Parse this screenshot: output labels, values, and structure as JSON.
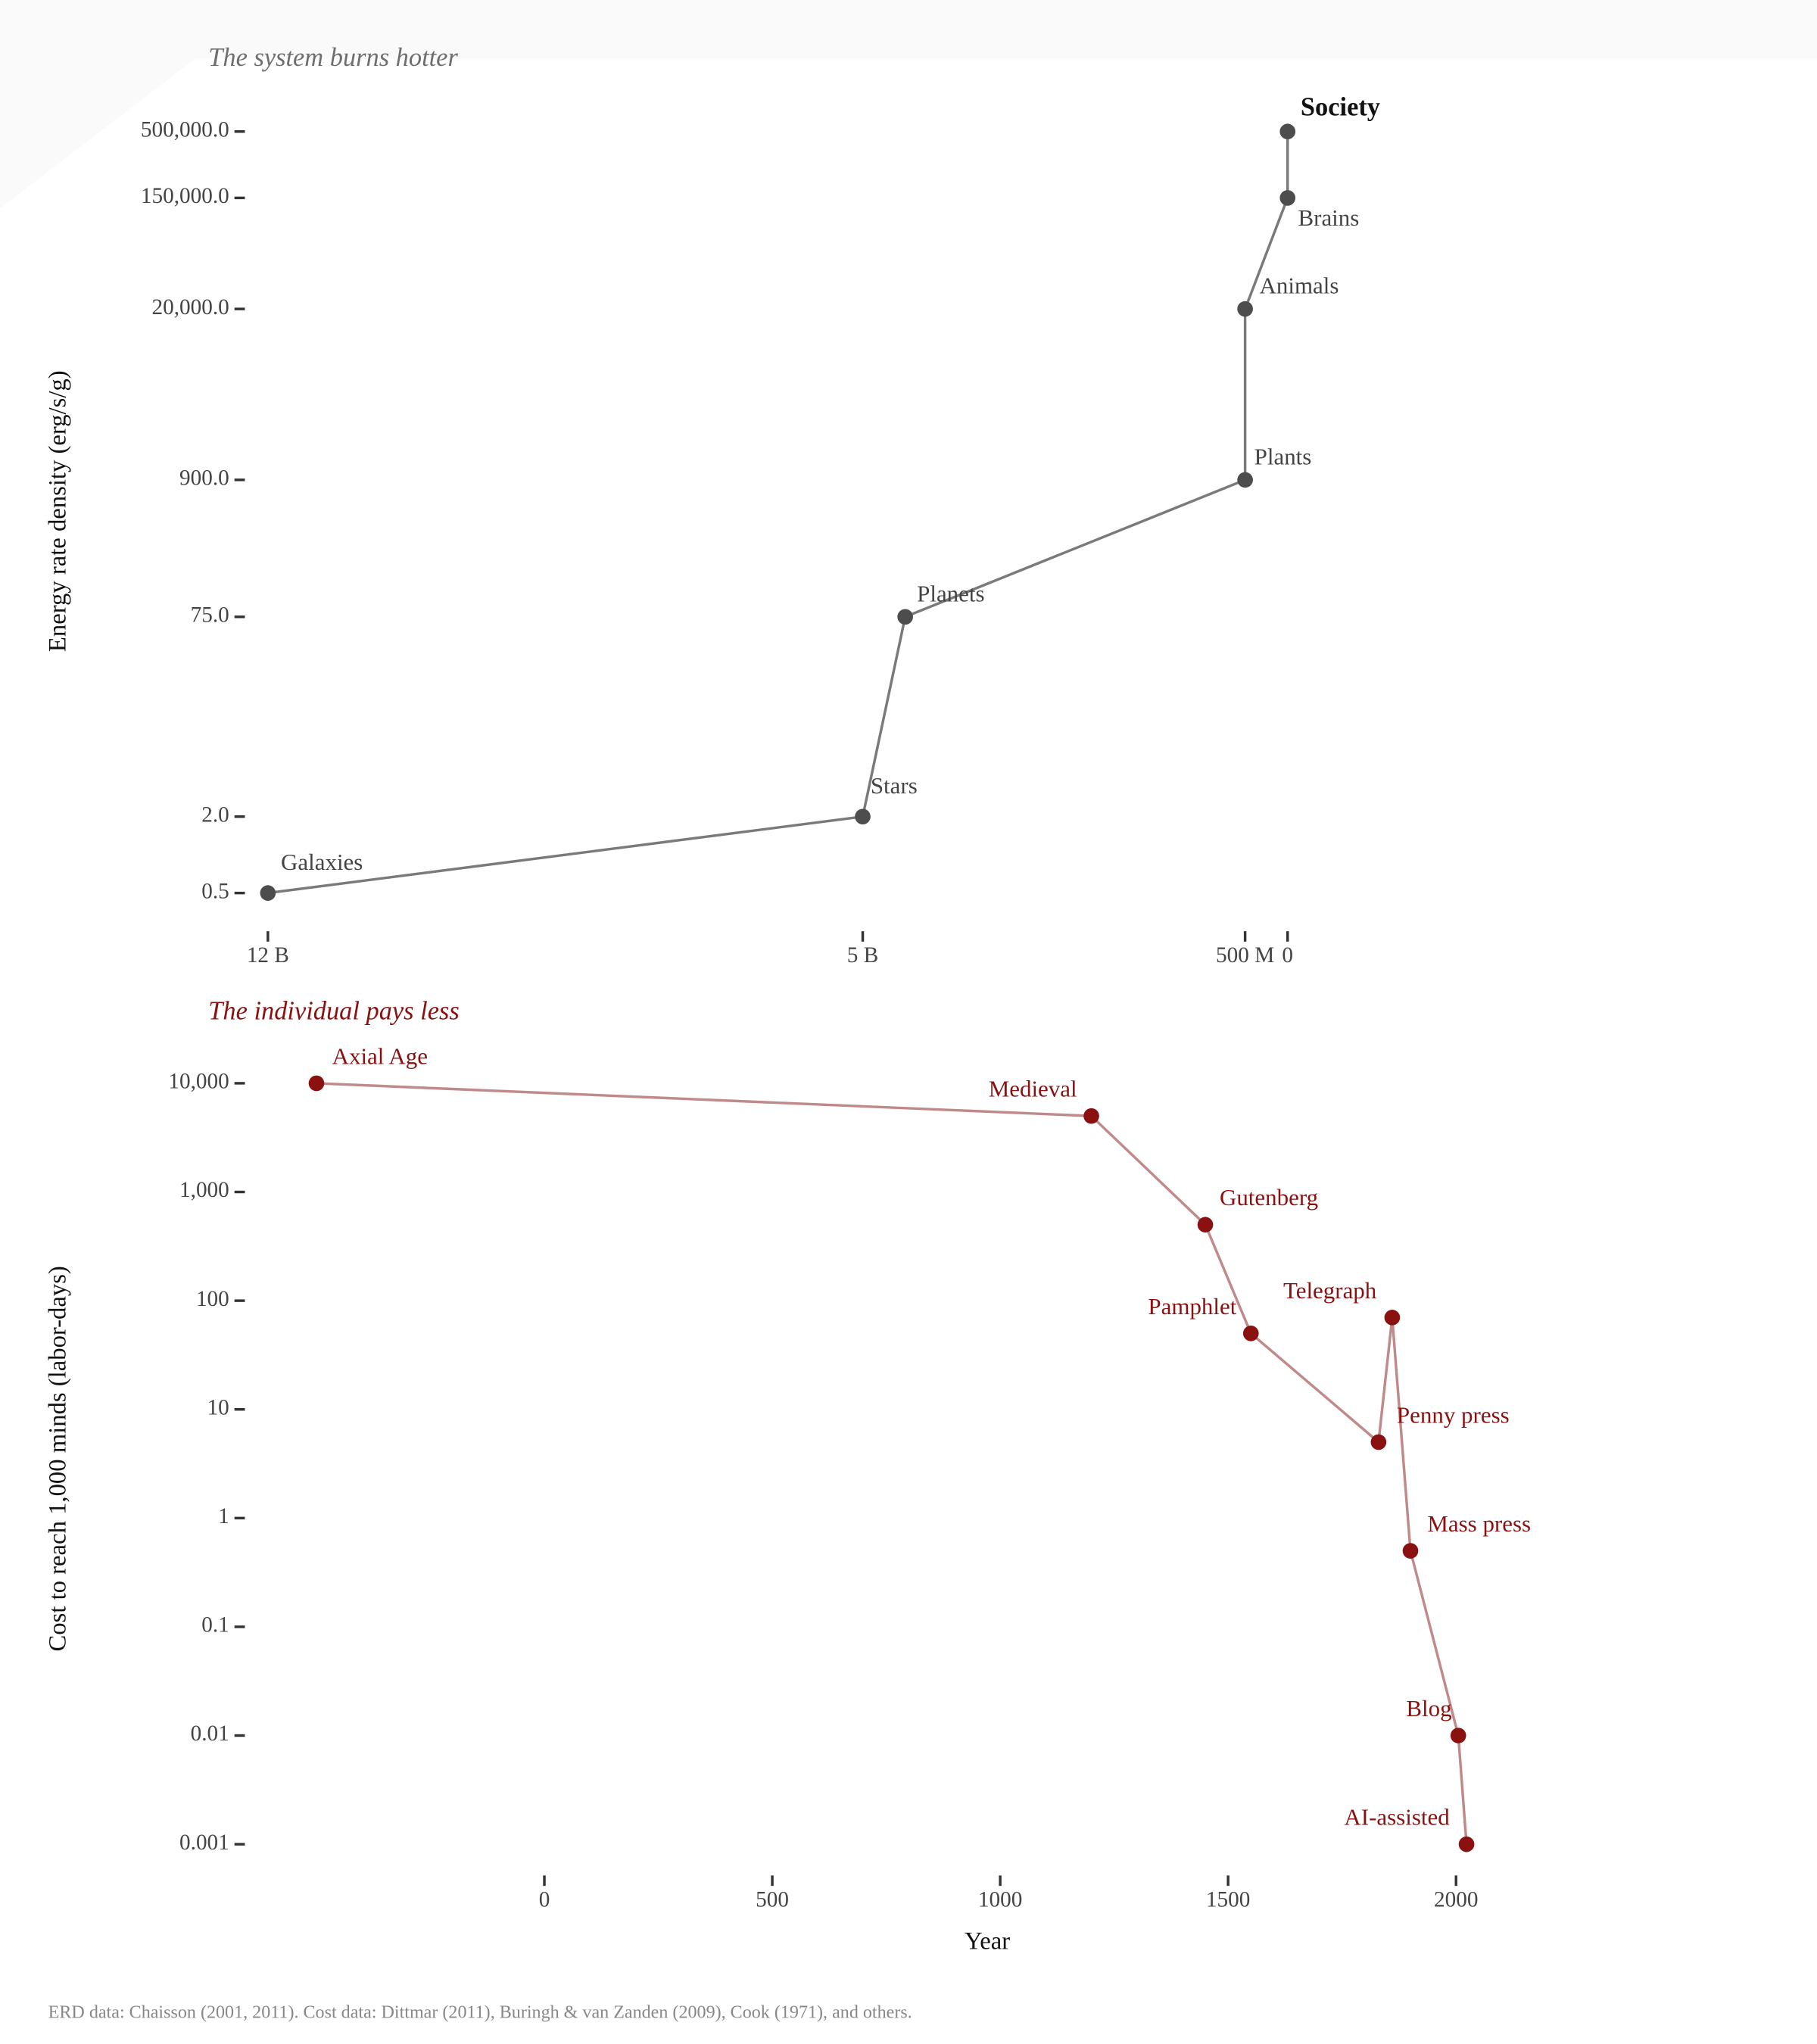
{
  "chart_data": [
    {
      "type": "line",
      "title": "The system burns hotter",
      "y_label": "Energy rate density (erg/s/g)",
      "x": [
        12000000000,
        5000000000,
        4500000000,
        500000000,
        500000000,
        0,
        0
      ],
      "values": [
        0.5,
        2,
        75,
        900,
        20000,
        150000,
        500000
      ],
      "labels": [
        "Galaxies",
        "Stars",
        "Planets",
        "Plants",
        "Animals",
        "Brains",
        "Society"
      ],
      "color": "#4d4d4d",
      "line_color": "#7a7a7a",
      "title_color": "#6e6e6e",
      "xlim": [
        12700000000,
        -6000000000
      ],
      "xticks": [
        {
          "value": 12000000000,
          "label": "12 B"
        },
        {
          "value": 5000000000,
          "label": "5 B"
        },
        {
          "value": 500000000,
          "label": "500 M"
        },
        0
      ],
      "ylim": [
        0.25,
        1040000
      ],
      "y_scale": "log",
      "yticks": [
        {
          "value": 0.5,
          "label": "0.5"
        },
        {
          "value": 2,
          "label": "2.0"
        },
        {
          "value": 75,
          "label": "75.0"
        },
        {
          "value": 900,
          "label": "900.0"
        },
        {
          "value": 20000,
          "label": "20,000.0"
        },
        {
          "value": 150000,
          "label": "150,000.0"
        },
        {
          "value": 500000,
          "label": "500,000.0"
        }
      ]
    },
    {
      "type": "line",
      "title": "The individual pays less",
      "y_label": "Cost to reach 1,000 minds (labor-days)",
      "x_label": "Year",
      "x": [
        -500,
        1200,
        1450,
        1550,
        1830,
        1860,
        1900,
        2005,
        2023
      ],
      "values": [
        10000,
        5000,
        500,
        50,
        5,
        70,
        0.5,
        0.01,
        0.001
      ],
      "labels": [
        "Axial Age",
        "Medieval",
        "Gutenberg",
        "Pamphlet",
        "Penny press",
        "Telegraph",
        "Mass press",
        "Blog",
        "AI-assisted"
      ],
      "color": "#8b1010",
      "line_color": "#c08a8a",
      "title_color": "#8b1010",
      "xlim": [
        -737,
        2749
      ],
      "xticks": [
        0,
        500,
        1000,
        1500,
        2000
      ],
      "ylim": [
        0.000516,
        24000
      ],
      "y_scale": "log",
      "yticks": [
        {
          "value": 0.001,
          "label": "0.001"
        },
        {
          "value": 0.01,
          "label": "0.01"
        },
        0.1,
        1,
        10,
        100,
        {
          "value": 1000,
          "label": "1,000"
        },
        {
          "value": 10000,
          "label": "10,000"
        }
      ]
    }
  ],
  "caption": "ERD data: Chaisson (2001, 2011). Cost data: Dittmar (2011), Buringh & van Zanden (2009), Cook (1971), and others."
}
